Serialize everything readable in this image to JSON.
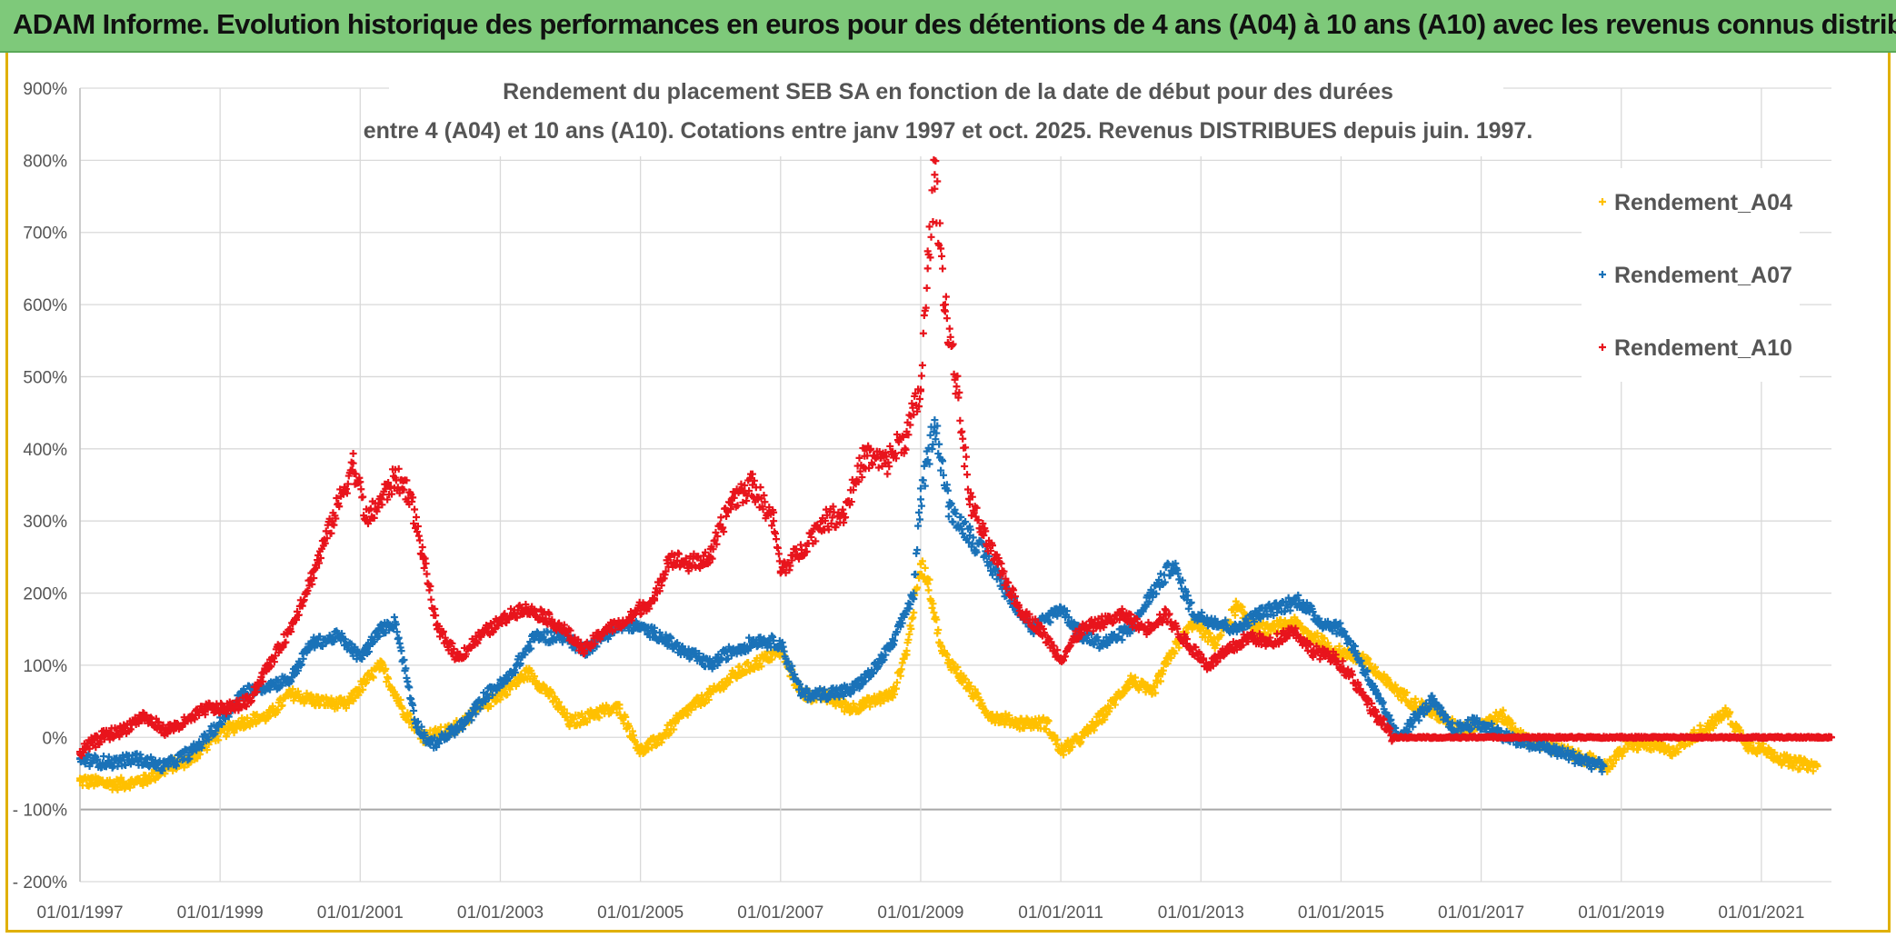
{
  "banner": {
    "title": "ADAM Informe. Evolution historique des performances en euros pour des détentions de 4 ans (A04) à 10 ans (A10) avec les revenus connus distribués"
  },
  "chart_data": {
    "type": "scatter",
    "title_line1": "Rendement du placement SEB SA en fonction de la date de début pour des durées",
    "title_line2": "entre 4 (A04) et 10 ans (A10). Cotations entre janv 1997 et oct. 2025. Revenus DISTRIBUES depuis juin. 1997.",
    "xlabel": "",
    "ylabel": "",
    "xlim": [
      1997.0,
      2022.0
    ],
    "ylim": [
      -200,
      900
    ],
    "y_ticks": [
      -200,
      -100,
      0,
      100,
      200,
      300,
      400,
      500,
      600,
      700,
      800,
      900
    ],
    "y_tick_labels": [
      "- 200%",
      "- 100%",
      "0%",
      "100%",
      "200%",
      "300%",
      "400%",
      "500%",
      "600%",
      "700%",
      "800%",
      "900%"
    ],
    "x_ticks": [
      1997,
      1999,
      2001,
      2003,
      2005,
      2007,
      2009,
      2011,
      2013,
      2015,
      2017,
      2019,
      2021
    ],
    "x_tick_labels": [
      "01/01/1997",
      "01/01/1999",
      "01/01/2001",
      "01/01/2003",
      "01/01/2005",
      "01/01/2007",
      "01/01/2009",
      "01/01/2011",
      "01/01/2013",
      "01/01/2015",
      "01/01/2017",
      "01/01/2019",
      "01/01/2021"
    ],
    "grid": true,
    "legend_position": "top-right",
    "marker": "+",
    "series": [
      {
        "name": "Rendement_A04",
        "color": "#ffc000",
        "x_end": 2021.8,
        "x": [
          1997.0,
          1997.5,
          1997.9,
          1998.3,
          1998.6,
          1998.9,
          1999.3,
          1999.7,
          2000.0,
          2000.4,
          2000.8,
          2001.1,
          2001.3,
          2001.6,
          2001.9,
          2002.3,
          2002.7,
          2003.0,
          2003.4,
          2003.7,
          2004.0,
          2004.4,
          2004.7,
          2005.0,
          2005.3,
          2005.7,
          2006.0,
          2006.4,
          2006.8,
          2007.0,
          2007.3,
          2007.7,
          2008.0,
          2008.3,
          2008.6,
          2008.8,
          2009.0,
          2009.1,
          2009.3,
          2009.6,
          2010.0,
          2010.4,
          2010.8,
          2011.0,
          2011.3,
          2011.6,
          2012.0,
          2012.3,
          2012.6,
          2012.9,
          2013.2,
          2013.5,
          2013.8,
          2014.0,
          2014.3,
          2014.6,
          2014.9,
          2015.3,
          2015.6,
          2016.0,
          2016.4,
          2016.7,
          2017.0,
          2017.3,
          2017.6,
          2017.9,
          2018.2,
          2018.5,
          2018.8,
          2019.1,
          2019.4,
          2019.7,
          2020.0,
          2020.3,
          2020.5,
          2020.8,
          2021.1,
          2021.4,
          2021.8
        ],
        "y": [
          -60,
          -65,
          -60,
          -40,
          -30,
          0,
          20,
          30,
          60,
          50,
          45,
          80,
          100,
          40,
          0,
          10,
          40,
          60,
          90,
          60,
          20,
          35,
          40,
          -20,
          0,
          40,
          60,
          90,
          110,
          120,
          60,
          55,
          40,
          50,
          60,
          120,
          240,
          220,
          120,
          80,
          30,
          20,
          20,
          -20,
          0,
          30,
          80,
          60,
          120,
          160,
          130,
          180,
          150,
          150,
          160,
          140,
          120,
          110,
          80,
          50,
          30,
          10,
          20,
          30,
          0,
          -10,
          -20,
          -30,
          -40,
          -10,
          -10,
          -20,
          0,
          20,
          35,
          -10,
          -20,
          -35,
          -40
        ]
      },
      {
        "name": "Rendement_A07",
        "color": "#1a72b8",
        "x_end": 2018.75,
        "x": [
          1997.0,
          1997.4,
          1997.8,
          1998.2,
          1998.6,
          1999.0,
          1999.3,
          1999.6,
          2000.0,
          2000.3,
          2000.7,
          2001.0,
          2001.3,
          2001.5,
          2001.8,
          2002.0,
          2002.2,
          2002.5,
          2002.8,
          2003.1,
          2003.5,
          2003.9,
          2004.2,
          2004.6,
          2004.9,
          2005.2,
          2005.6,
          2006.0,
          2006.3,
          2006.7,
          2007.0,
          2007.3,
          2007.6,
          2008.0,
          2008.3,
          2008.6,
          2008.9,
          2009.0,
          2009.2,
          2009.4,
          2009.7,
          2010.0,
          2010.3,
          2010.6,
          2011.0,
          2011.3,
          2011.6,
          2012.0,
          2012.3,
          2012.6,
          2012.9,
          2013.2,
          2013.5,
          2013.8,
          2014.1,
          2014.4,
          2014.7,
          2015.0,
          2015.2,
          2015.5,
          2015.8,
          2016.0,
          2016.3,
          2016.6,
          2016.9,
          2017.2,
          2017.5,
          2017.8,
          2018.1,
          2018.4,
          2018.75
        ],
        "y": [
          -30,
          -35,
          -30,
          -40,
          -20,
          20,
          60,
          70,
          80,
          130,
          140,
          110,
          150,
          160,
          20,
          -10,
          0,
          20,
          60,
          80,
          140,
          140,
          120,
          150,
          155,
          145,
          120,
          100,
          120,
          135,
          130,
          60,
          60,
          65,
          90,
          130,
          200,
          330,
          440,
          320,
          280,
          240,
          190,
          150,
          180,
          140,
          130,
          150,
          200,
          240,
          170,
          160,
          150,
          170,
          180,
          190,
          160,
          150,
          120,
          60,
          0,
          20,
          50,
          10,
          20,
          10,
          -5,
          -10,
          -20,
          -30,
          -40
        ]
      },
      {
        "name": "Rendement_A10",
        "color": "#e8141c",
        "x_end": 2022.0,
        "x": [
          1997.0,
          1997.3,
          1997.6,
          1997.9,
          1998.2,
          1998.5,
          1998.8,
          1999.1,
          1999.4,
          1999.7,
          2000.0,
          2000.3,
          2000.6,
          2000.9,
          2001.1,
          2001.3,
          2001.5,
          2001.7,
          2001.9,
          2002.1,
          2002.4,
          2002.7,
          2003.0,
          2003.3,
          2003.6,
          2003.9,
          2004.2,
          2004.5,
          2004.8,
          2005.0,
          2005.2,
          2005.4,
          2005.7,
          2006.0,
          2006.3,
          2006.6,
          2006.9,
          2007.0,
          2007.3,
          2007.6,
          2007.9,
          2008.2,
          2008.5,
          2008.8,
          2009.0,
          2009.1,
          2009.2,
          2009.35,
          2009.5,
          2009.7,
          2009.9,
          2010.1,
          2010.4,
          2010.7,
          2011.0,
          2011.3,
          2011.6,
          2011.9,
          2012.2,
          2012.5,
          2012.8,
          2013.1,
          2013.4,
          2013.7,
          2014.0,
          2014.3,
          2014.6,
          2014.9,
          2015.1,
          2015.3,
          2015.5,
          2015.75,
          2016.0,
          2017.0,
          2018.0,
          2019.0,
          2020.0,
          2021.0,
          2022.0
        ],
        "y": [
          -20,
          0,
          10,
          30,
          10,
          20,
          40,
          40,
          50,
          100,
          150,
          220,
          300,
          380,
          300,
          330,
          360,
          340,
          250,
          150,
          110,
          140,
          160,
          180,
          170,
          150,
          120,
          150,
          160,
          180,
          190,
          250,
          240,
          250,
          330,
          350,
          300,
          230,
          260,
          300,
          310,
          390,
          380,
          420,
          480,
          650,
          780,
          600,
          500,
          330,
          280,
          240,
          180,
          150,
          110,
          150,
          160,
          170,
          150,
          170,
          130,
          100,
          120,
          140,
          130,
          150,
          120,
          110,
          90,
          60,
          30,
          0,
          0,
          0,
          0,
          0,
          0,
          0,
          0
        ]
      }
    ]
  }
}
